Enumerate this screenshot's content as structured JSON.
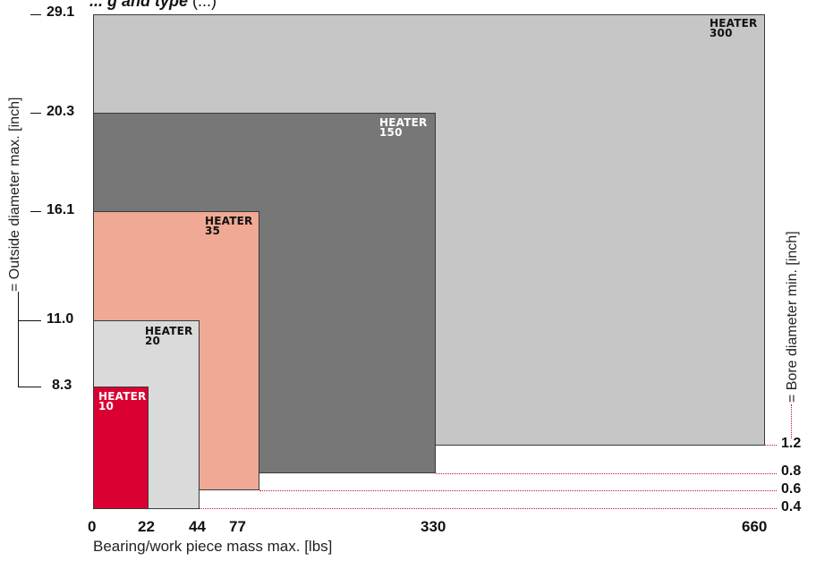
{
  "title": "... g and type",
  "title_tail": "(...)",
  "chart_data": {
    "type": "nested-rectangles",
    "x_axis": {
      "label": "Bearing/work piece mass max. [lbs]",
      "ticks": [
        "0",
        "22",
        "44",
        "77",
        "330",
        "660"
      ]
    },
    "y_axis_left": {
      "label": "= Outside diameter max. [inch]",
      "ticks": [
        "29.1",
        "20.3",
        "16.1",
        "11.0",
        "8.3"
      ]
    },
    "y_axis_right": {
      "label": "= Bore diameter min. [inch]",
      "ticks": [
        "1.2",
        "0.8",
        "0.6",
        "0.4"
      ]
    },
    "heaters": [
      {
        "name": "HEATER",
        "model": "300",
        "mass_max_lbs": 660,
        "outside_diameter_max_inch": 29.1,
        "bore_diameter_min_inch": 1.2,
        "color": "#c6c6c6",
        "text_color": "#111111"
      },
      {
        "name": "HEATER",
        "model": "150",
        "mass_max_lbs": 330,
        "outside_diameter_max_inch": 20.3,
        "bore_diameter_min_inch": 0.8,
        "color": "#777777",
        "text_color": "#ffffff"
      },
      {
        "name": "HEATER",
        "model": "35",
        "mass_max_lbs": 77,
        "outside_diameter_max_inch": 16.1,
        "bore_diameter_min_inch": 0.6,
        "color": "#f0a994",
        "text_color": "#111111"
      },
      {
        "name": "HEATER",
        "model": "20",
        "mass_max_lbs": 44,
        "outside_diameter_max_inch": 11.0,
        "bore_diameter_min_inch": 0.4,
        "color": "#dadada",
        "text_color": "#111111"
      },
      {
        "name": "HEATER",
        "model": "10",
        "mass_max_lbs": 22,
        "outside_diameter_max_inch": 8.3,
        "bore_diameter_min_inch": 0.4,
        "color": "#db0032",
        "text_color": "#ffffff"
      }
    ]
  }
}
